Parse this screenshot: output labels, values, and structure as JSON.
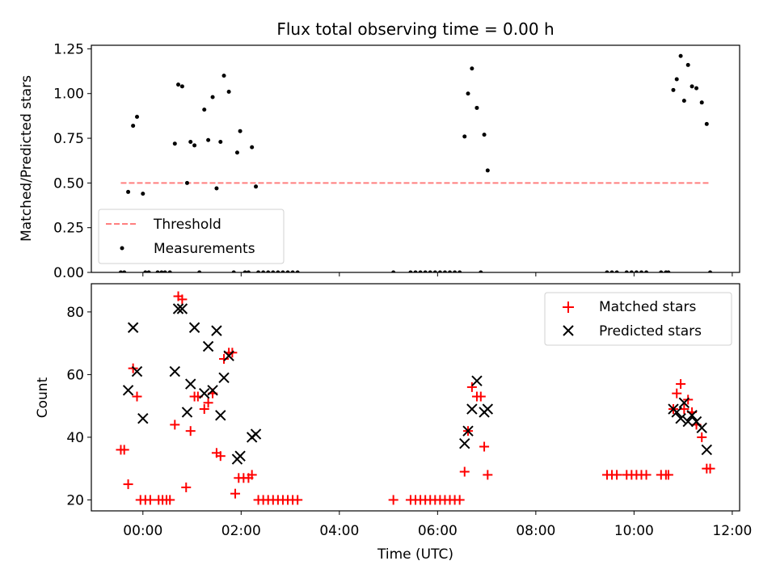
{
  "chart_data": [
    {
      "type": "scatter",
      "title": "Flux total observing time = 0.00 h",
      "xlabel": "",
      "ylabel": "Matched/Predicted stars",
      "ylim": [
        0,
        1.27
      ],
      "xlim_hours": [
        -1.05,
        12.15
      ],
      "y_ticks": [
        "0.00",
        "0.25",
        "0.50",
        "0.75",
        "1.00",
        "1.25"
      ],
      "legend_position": "lower-left",
      "threshold": {
        "name": "Threshold",
        "y": 0.5,
        "x_range_hours": [
          -0.45,
          11.55
        ],
        "color": "#ff7f7f"
      },
      "measurements": {
        "name": "Measurements",
        "color": "#000000",
        "points": [
          [
            -0.45,
            0.0
          ],
          [
            -0.38,
            0.0
          ],
          [
            -0.3,
            0.45
          ],
          [
            -0.2,
            0.82
          ],
          [
            -0.12,
            0.87
          ],
          [
            0.0,
            0.44
          ],
          [
            0.05,
            0.0
          ],
          [
            0.12,
            0.0
          ],
          [
            0.3,
            0.0
          ],
          [
            0.38,
            0.0
          ],
          [
            0.45,
            0.0
          ],
          [
            0.55,
            0.0
          ],
          [
            0.65,
            0.72
          ],
          [
            0.72,
            1.05
          ],
          [
            0.8,
            1.04
          ],
          [
            0.9,
            0.5
          ],
          [
            0.97,
            0.73
          ],
          [
            1.05,
            0.71
          ],
          [
            1.15,
            0.0
          ],
          [
            1.25,
            0.91
          ],
          [
            1.33,
            0.74
          ],
          [
            1.42,
            0.98
          ],
          [
            1.5,
            0.47
          ],
          [
            1.58,
            0.73
          ],
          [
            1.65,
            1.1
          ],
          [
            1.75,
            1.01
          ],
          [
            1.85,
            0.0
          ],
          [
            1.92,
            0.67
          ],
          [
            1.98,
            0.79
          ],
          [
            2.08,
            0.0
          ],
          [
            2.15,
            0.0
          ],
          [
            2.22,
            0.7
          ],
          [
            2.3,
            0.48
          ],
          [
            2.35,
            0.0
          ],
          [
            2.45,
            0.0
          ],
          [
            2.55,
            0.0
          ],
          [
            2.65,
            0.0
          ],
          [
            2.75,
            0.0
          ],
          [
            2.85,
            0.0
          ],
          [
            2.95,
            0.0
          ],
          [
            3.05,
            0.0
          ],
          [
            3.15,
            0.0
          ],
          [
            5.1,
            0.0
          ],
          [
            5.45,
            0.0
          ],
          [
            5.55,
            0.0
          ],
          [
            5.65,
            0.0
          ],
          [
            5.75,
            0.0
          ],
          [
            5.85,
            0.0
          ],
          [
            5.95,
            0.0
          ],
          [
            6.05,
            0.0
          ],
          [
            6.15,
            0.0
          ],
          [
            6.25,
            0.0
          ],
          [
            6.35,
            0.0
          ],
          [
            6.45,
            0.0
          ],
          [
            6.55,
            0.76
          ],
          [
            6.62,
            1.0
          ],
          [
            6.7,
            1.14
          ],
          [
            6.8,
            0.92
          ],
          [
            6.88,
            0.0
          ],
          [
            6.95,
            0.77
          ],
          [
            7.02,
            0.57
          ],
          [
            9.45,
            0.0
          ],
          [
            9.55,
            0.0
          ],
          [
            9.65,
            0.0
          ],
          [
            9.85,
            0.0
          ],
          [
            9.95,
            0.0
          ],
          [
            10.05,
            0.0
          ],
          [
            10.15,
            0.0
          ],
          [
            10.25,
            0.0
          ],
          [
            10.55,
            0.0
          ],
          [
            10.65,
            0.0
          ],
          [
            10.7,
            0.0
          ],
          [
            10.8,
            1.02
          ],
          [
            10.87,
            1.08
          ],
          [
            10.95,
            1.21
          ],
          [
            11.02,
            0.96
          ],
          [
            11.1,
            1.16
          ],
          [
            11.18,
            1.04
          ],
          [
            11.27,
            1.03
          ],
          [
            11.38,
            0.95
          ],
          [
            11.48,
            0.83
          ],
          [
            11.55,
            0.0
          ]
        ]
      }
    },
    {
      "type": "scatter",
      "xlabel": "Time (UTC)",
      "ylabel": "Count",
      "ylim": [
        16.5,
        89
      ],
      "xlim_hours": [
        -1.05,
        12.15
      ],
      "y_ticks": [
        "20",
        "40",
        "60",
        "80"
      ],
      "x_ticks": [
        "00:00",
        "02:00",
        "04:00",
        "06:00",
        "08:00",
        "10:00",
        "12:00"
      ],
      "legend_position": "upper-right",
      "matched": {
        "name": "Matched stars",
        "color": "#ff0000",
        "points": [
          [
            -0.45,
            36
          ],
          [
            -0.38,
            36
          ],
          [
            -0.3,
            25
          ],
          [
            -0.2,
            62
          ],
          [
            -0.12,
            53
          ],
          [
            -0.05,
            20
          ],
          [
            0.05,
            20
          ],
          [
            0.15,
            20
          ],
          [
            0.32,
            20
          ],
          [
            0.4,
            20
          ],
          [
            0.48,
            20
          ],
          [
            0.55,
            20
          ],
          [
            0.65,
            44
          ],
          [
            0.72,
            85
          ],
          [
            0.8,
            84
          ],
          [
            0.88,
            24
          ],
          [
            0.97,
            42
          ],
          [
            1.05,
            53
          ],
          [
            1.12,
            53
          ],
          [
            1.25,
            49
          ],
          [
            1.33,
            51
          ],
          [
            1.42,
            54
          ],
          [
            1.5,
            35
          ],
          [
            1.58,
            34
          ],
          [
            1.65,
            65
          ],
          [
            1.75,
            67
          ],
          [
            1.82,
            67
          ],
          [
            1.88,
            22
          ],
          [
            1.95,
            27
          ],
          [
            2.05,
            27
          ],
          [
            2.15,
            27
          ],
          [
            2.22,
            28
          ],
          [
            2.35,
            20
          ],
          [
            2.45,
            20
          ],
          [
            2.55,
            20
          ],
          [
            2.65,
            20
          ],
          [
            2.75,
            20
          ],
          [
            2.85,
            20
          ],
          [
            2.95,
            20
          ],
          [
            3.05,
            20
          ],
          [
            3.15,
            20
          ],
          [
            5.1,
            20
          ],
          [
            5.45,
            20
          ],
          [
            5.55,
            20
          ],
          [
            5.65,
            20
          ],
          [
            5.75,
            20
          ],
          [
            5.85,
            20
          ],
          [
            5.95,
            20
          ],
          [
            6.05,
            20
          ],
          [
            6.15,
            20
          ],
          [
            6.25,
            20
          ],
          [
            6.35,
            20
          ],
          [
            6.45,
            20
          ],
          [
            6.55,
            29
          ],
          [
            6.62,
            42
          ],
          [
            6.7,
            56
          ],
          [
            6.8,
            53
          ],
          [
            6.88,
            53
          ],
          [
            6.95,
            37
          ],
          [
            7.02,
            28
          ],
          [
            9.45,
            28
          ],
          [
            9.55,
            28
          ],
          [
            9.65,
            28
          ],
          [
            9.85,
            28
          ],
          [
            9.95,
            28
          ],
          [
            10.05,
            28
          ],
          [
            10.15,
            28
          ],
          [
            10.25,
            28
          ],
          [
            10.55,
            28
          ],
          [
            10.65,
            28
          ],
          [
            10.7,
            28
          ],
          [
            10.8,
            49
          ],
          [
            10.87,
            54
          ],
          [
            10.95,
            57
          ],
          [
            11.02,
            49
          ],
          [
            11.1,
            52
          ],
          [
            11.18,
            48
          ],
          [
            11.27,
            44
          ],
          [
            11.38,
            40
          ],
          [
            11.48,
            30
          ],
          [
            11.55,
            30
          ]
        ]
      },
      "predicted": {
        "name": "Predicted stars",
        "color": "#000000",
        "points": [
          [
            -0.3,
            55
          ],
          [
            -0.2,
            75
          ],
          [
            -0.12,
            61
          ],
          [
            0.0,
            46
          ],
          [
            0.65,
            61
          ],
          [
            0.72,
            81
          ],
          [
            0.8,
            81
          ],
          [
            0.9,
            48
          ],
          [
            0.97,
            57
          ],
          [
            1.05,
            75
          ],
          [
            1.25,
            54
          ],
          [
            1.33,
            69
          ],
          [
            1.42,
            55
          ],
          [
            1.5,
            74
          ],
          [
            1.58,
            47
          ],
          [
            1.65,
            59
          ],
          [
            1.75,
            66
          ],
          [
            1.92,
            33
          ],
          [
            1.98,
            34
          ],
          [
            2.22,
            40
          ],
          [
            2.3,
            41
          ],
          [
            6.55,
            38
          ],
          [
            6.62,
            42
          ],
          [
            6.7,
            49
          ],
          [
            6.8,
            58
          ],
          [
            6.95,
            48
          ],
          [
            7.02,
            49
          ],
          [
            10.8,
            49
          ],
          [
            10.87,
            48
          ],
          [
            10.95,
            46
          ],
          [
            11.02,
            51
          ],
          [
            11.1,
            45
          ],
          [
            11.18,
            47
          ],
          [
            11.27,
            45
          ],
          [
            11.38,
            43
          ],
          [
            11.48,
            36
          ]
        ]
      }
    }
  ]
}
